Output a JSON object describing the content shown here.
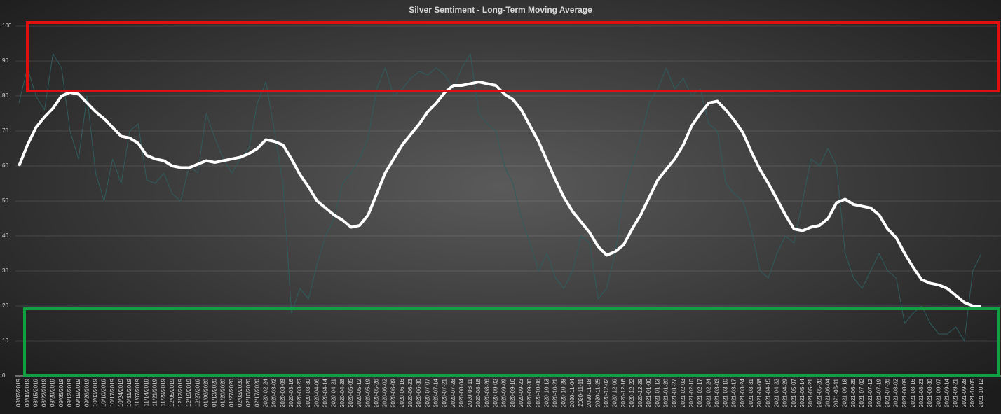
{
  "chart_data": {
    "type": "line",
    "title": "Silver Sentiment - Long-Term Moving Average",
    "categories": [
      "08/02/2019",
      "08/08/2019",
      "08/15/2019",
      "08/22/2019",
      "08/29/2019",
      "09/05/2019",
      "09/12/2019",
      "09/19/2019",
      "09/26/2019",
      "10/03/2019",
      "10/10/2019",
      "10/17/2019",
      "10/24/2019",
      "10/31/2019",
      "11/07/2019",
      "11/14/2019",
      "11/21/2019",
      "11/29/2019",
      "12/05/2019",
      "12/12/2019",
      "12/19/2019",
      "12/27/2019",
      "01/06/2020",
      "01/13/2020",
      "01/20/2020",
      "01/27/2020",
      "02/03/2020",
      "02/10/2020",
      "02/17/2020",
      "2020-02-24",
      "2020-03-02",
      "2020-03-09",
      "2020-03-16",
      "2020-03-23",
      "2020-03-30",
      "2020-04-06",
      "2020-04-14",
      "2020-04-21",
      "2020-04-28",
      "2020-05-05",
      "2020-05-12",
      "2020-05-19",
      "2020-05-26",
      "2020-06-02",
      "2020-06-09",
      "2020-06-16",
      "2020-06-23",
      "2020-06-30",
      "2020-07-07",
      "2020-07-14",
      "2020-07-21",
      "2020-07-28",
      "2020-08-04",
      "2020-08-11",
      "2020-08-18",
      "2020-08-26",
      "2020-09-02",
      "2020-09-09",
      "2020-09-16",
      "2020-09-23",
      "2020-09-30",
      "2020-10-06",
      "2020-10-13",
      "2020-10-21",
      "2020-10-28",
      "2020-11-04",
      "2020-11-11",
      "2020-11-18",
      "2020-11-25",
      "2020-12-02",
      "2020-12-09",
      "2020-12-16",
      "2020-12-22",
      "2020-12-29",
      "2021-01-06",
      "2021-01-13",
      "2021-01-20",
      "2021-01-27",
      "2021-02-03",
      "2021-02-10",
      "2021-02-17",
      "2021-02-24",
      "2021-03-03",
      "2021-03-10",
      "2021-03-17",
      "2021-03-24",
      "2021-03-31",
      "2021-04-08",
      "2021-04-15",
      "2021-04-22",
      "2021-04-29",
      "2021-05-07",
      "2021-05-14",
      "2021-05-21",
      "2021-05-28",
      "2021-06-04",
      "2021-06-11",
      "2021-06-18",
      "2021-06-25",
      "2021-07-02",
      "2021-07-12",
      "2021-07-19",
      "2021-07-26",
      "2021-08-02",
      "2021-08-09",
      "2021-08-16",
      "2021-08-23",
      "2021-08-30",
      "2021-09-07",
      "2021-09-14",
      "2021-09-21",
      "2021-09-28",
      "2021-10-05",
      "2021-10-12"
    ],
    "series": [
      {
        "color": "#2f5d5e",
        "values": [
          78,
          88,
          80,
          76,
          92,
          88,
          70,
          62,
          80,
          58,
          50,
          62,
          55,
          70,
          72,
          56,
          55,
          58,
          52,
          50,
          60,
          58,
          75,
          68,
          62,
          58,
          62,
          65,
          78,
          84,
          70,
          55,
          18,
          25,
          22,
          32,
          40,
          45,
          55,
          58,
          62,
          68,
          82,
          88,
          80,
          82,
          85,
          87,
          86,
          88,
          86,
          82,
          88,
          92,
          75,
          72,
          70,
          60,
          55,
          45,
          38,
          30,
          35,
          28,
          25,
          30,
          40,
          38,
          22,
          25,
          35,
          52,
          60,
          68,
          78,
          82,
          88,
          82,
          85,
          80,
          82,
          72,
          70,
          55,
          52,
          50,
          42,
          30,
          28,
          35,
          40,
          38,
          50,
          62,
          60,
          65,
          60,
          35,
          28,
          25,
          30,
          35,
          30,
          28,
          15,
          18,
          20,
          15,
          12,
          12,
          14,
          10,
          30,
          35
        ]
      },
      {
        "color": "#ffffff",
        "values": [
          60,
          66,
          71,
          74,
          76.5,
          80,
          81,
          80.5,
          78,
          75.5,
          73.5,
          71,
          68.5,
          68,
          66.5,
          63,
          62,
          61.5,
          60,
          59.5,
          59.5,
          60.5,
          61.5,
          61,
          61.5,
          62,
          62.5,
          63.5,
          65,
          67.5,
          67,
          66,
          62,
          57.5,
          54,
          50,
          48,
          46,
          44.5,
          42.5,
          43,
          46,
          52,
          58,
          62,
          66,
          69,
          72,
          75.5,
          78,
          81,
          83,
          83,
          83.5,
          84,
          83.5,
          83,
          80.5,
          79,
          76,
          71.5,
          67,
          61.5,
          56,
          51,
          47,
          44,
          41,
          37,
          34.5,
          35.5,
          37.5,
          42,
          46,
          51,
          56,
          59,
          62,
          66,
          71.5,
          75,
          78,
          78.5,
          76,
          73,
          69.5,
          64,
          59,
          55,
          50.5,
          46,
          42,
          41.5,
          42.5,
          43,
          45,
          49.5,
          50.5,
          49,
          48.5,
          48,
          46,
          42,
          39.5,
          35,
          31,
          27.5,
          26.5,
          26,
          25,
          23,
          21,
          20,
          20
        ]
      }
    ],
    "ylim": [
      0,
      100
    ],
    "yticks": [
      0,
      10,
      20,
      30,
      40,
      50,
      60,
      70,
      80,
      90,
      100
    ],
    "grid": true
  }
}
